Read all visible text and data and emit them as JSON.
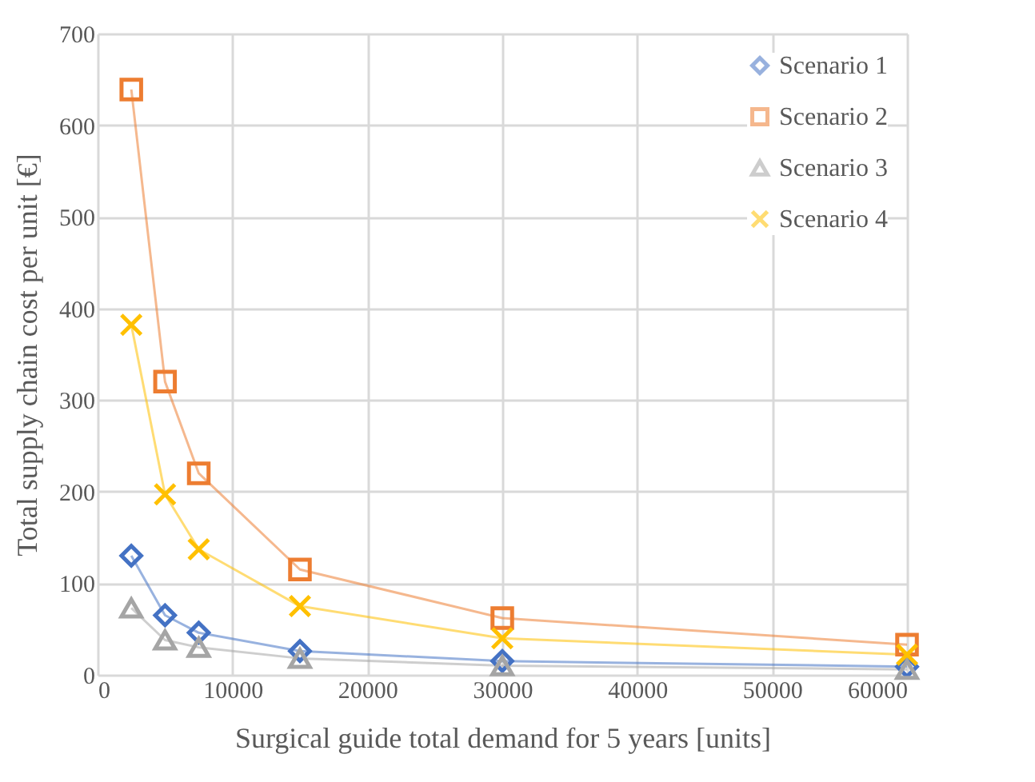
{
  "chart_data": {
    "type": "line",
    "xlabel": "Surgical guide total demand for 5 years [units]",
    "ylabel": "Total supply chain cost per unit [€]",
    "x": [
      2500,
      5000,
      7500,
      15000,
      30000,
      60000
    ],
    "series": [
      {
        "name": "Scenario 1",
        "color": "#4472c4",
        "marker": "diamond",
        "values": [
          130,
          65,
          46,
          26,
          15,
          9
        ]
      },
      {
        "name": "Scenario 2",
        "color": "#ed7d31",
        "marker": "square",
        "values": [
          639,
          320,
          220,
          115,
          62,
          33
        ]
      },
      {
        "name": "Scenario 3",
        "color": "#a5a5a5",
        "marker": "triangle",
        "values": [
          73,
          38,
          30,
          18,
          10,
          6
        ]
      },
      {
        "name": "Scenario 4",
        "color": "#ffc000",
        "marker": "cross",
        "values": [
          382,
          197,
          137,
          75,
          40,
          22
        ]
      }
    ],
    "xlim": [
      0,
      60000
    ],
    "xticks": [
      0,
      10000,
      20000,
      30000,
      40000,
      50000,
      60000
    ],
    "ylim": [
      0,
      700
    ],
    "yticks": [
      0,
      100,
      200,
      300,
      400,
      500,
      600,
      700
    ],
    "grid": true,
    "legend": "top right",
    "line_style": "solid"
  }
}
